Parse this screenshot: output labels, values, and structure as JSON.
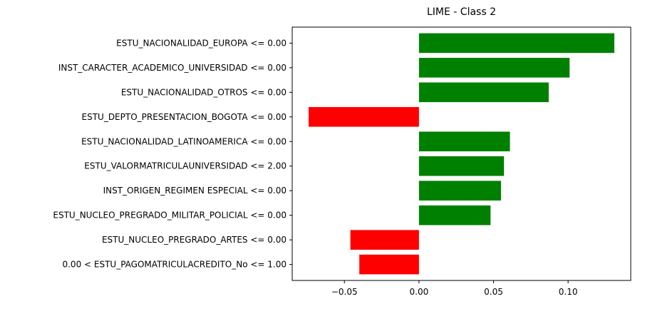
{
  "chart_data": {
    "type": "bar",
    "orientation": "horizontal",
    "title": "LIME - Class 2",
    "xlabel": "",
    "ylabel": "",
    "xlim": [
      -0.085,
      0.142
    ],
    "xticks": [
      -0.05,
      0.0,
      0.05,
      0.1
    ],
    "xtick_labels": [
      "−0.05",
      "0.00",
      "0.05",
      "0.10"
    ],
    "grid": false,
    "categories": [
      "ESTU_NACIONALIDAD_EUROPA <= 0.00",
      "INST_CARACTER_ACADEMICO_UNIVERSIDAD <= 0.00",
      "ESTU_NACIONALIDAD_OTROS <= 0.00",
      "ESTU_DEPTO_PRESENTACION_BOGOTA <= 0.00",
      "ESTU_NACIONALIDAD_LATINOAMERICA <= 0.00",
      "ESTU_VALORMATRICULAUNIVERSIDAD <= 2.00",
      "INST_ORIGEN_REGIMEN ESPECIAL <= 0.00",
      "ESTU_NUCLEO_PREGRADO_MILITAR_POLICIAL <= 0.00",
      "ESTU_NUCLEO_PREGRADO_ARTES <= 0.00",
      "0.00 < ESTU_PAGOMATRICULACREDITO_No <= 1.00"
    ],
    "values": [
      0.131,
      0.101,
      0.087,
      -0.074,
      0.061,
      0.057,
      0.055,
      0.048,
      -0.046,
      -0.04
    ],
    "colors": {
      "positive": "#008000",
      "negative": "#ff0000"
    }
  }
}
